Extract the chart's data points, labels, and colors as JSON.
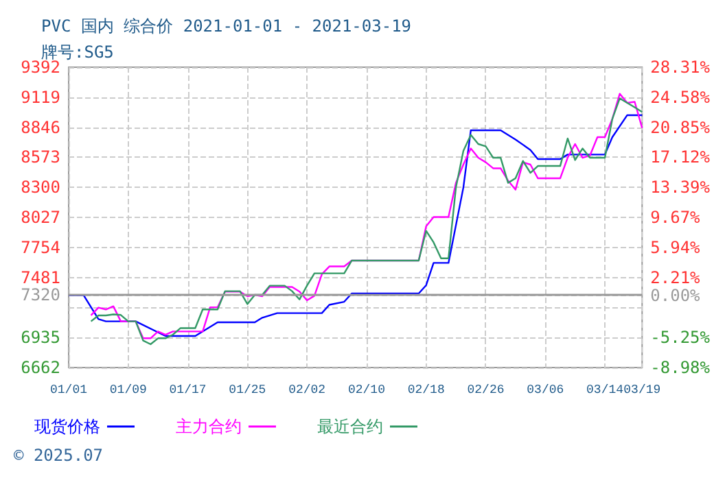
{
  "chart_data": {
    "type": "line",
    "title": "PVC 国内 综合价 2021-01-01 - 2021-03-19",
    "subtitle": "牌号:SG5",
    "annotations": [
      "© 2025.07"
    ],
    "legend": "bottom",
    "grid": true,
    "marker": "none",
    "line_style": "solid",
    "xlim": [
      "2021-01-01",
      "2021-03-19"
    ],
    "xticks": [
      {
        "value": "2021-01-01",
        "label": "01/01"
      },
      {
        "value": "2021-01-09",
        "label": "01/09"
      },
      {
        "value": "2021-01-17",
        "label": "01/17"
      },
      {
        "value": "2021-01-25",
        "label": "01/25"
      },
      {
        "value": "2021-02-02",
        "label": "02/02"
      },
      {
        "value": "2021-02-10",
        "label": "02/10"
      },
      {
        "value": "2021-02-18",
        "label": "02/18"
      },
      {
        "value": "2021-02-26",
        "label": "02/26"
      },
      {
        "value": "2021-03-06",
        "label": "03/06"
      },
      {
        "value": "2021-03-14",
        "label": "03/14"
      },
      {
        "value": "2021-03-19",
        "label": "03/19"
      }
    ],
    "ylim": [
      6662,
      9392
    ],
    "yticks": [
      6662,
      6935,
      {
        "value": 7208,
        "label": null
      },
      7320,
      7481,
      7754,
      8027,
      8300,
      8573,
      8846,
      9119,
      9392
    ],
    "y2lim": [
      -8.98,
      28.31
    ],
    "y2ticks": [
      {
        "value": -8.98,
        "label": "-8.98%"
      },
      {
        "value": -5.25,
        "label": "-5.25%"
      },
      {
        "value": 0,
        "label": "0.00%"
      },
      {
        "value": 2.21,
        "label": "2.21%"
      },
      {
        "value": 5.94,
        "label": "5.94%"
      },
      {
        "value": 9.67,
        "label": "9.67%"
      },
      {
        "value": 13.39,
        "label": "13.39%"
      },
      {
        "value": 17.12,
        "label": "17.12%"
      },
      {
        "value": 20.85,
        "label": "20.85%"
      },
      {
        "value": 24.58,
        "label": "24.58%"
      },
      {
        "value": 28.31,
        "label": "28.31%"
      }
    ],
    "ref_lines": [
      {
        "axis": "y",
        "value": 7320,
        "label": null,
        "color": "#999999",
        "line_style": "solid"
      }
    ],
    "series": [
      {
        "name": "现货价格",
        "color": "#0000ff",
        "x": [
          "2021-01-01",
          "2021-01-03",
          "2021-01-05",
          "2021-01-06",
          "2021-01-10",
          "2021-01-14",
          "2021-01-18",
          "2021-01-21",
          "2021-01-26",
          "2021-01-27",
          "2021-01-29",
          "2021-02-04",
          "2021-02-05",
          "2021-02-07",
          "2021-02-08",
          "2021-02-17",
          "2021-02-18",
          "2021-02-19",
          "2021-02-21",
          "2021-02-23",
          "2021-02-24",
          "2021-02-28",
          "2021-03-02",
          "2021-03-04",
          "2021-03-05",
          "2021-03-08",
          "2021-03-09",
          "2021-03-14",
          "2021-03-15",
          "2021-03-17",
          "2021-03-19"
        ],
        "values": [
          7320,
          7320,
          7102,
          7082,
          7082,
          6949,
          6949,
          7073,
          7073,
          7115,
          7157,
          7157,
          7232,
          7260,
          7335,
          7335,
          7410,
          7613,
          7613,
          8299,
          8819,
          8819,
          8735,
          8640,
          8557,
          8557,
          8598,
          8598,
          8756,
          8956,
          8956
        ]
      },
      {
        "name": "主力合约",
        "color": "#ff00ff",
        "x": [
          "2021-01-04",
          "2021-01-05",
          "2021-01-06",
          "2021-01-07",
          "2021-01-08",
          "2021-01-10",
          "2021-01-11",
          "2021-01-12",
          "2021-01-13",
          "2021-01-14",
          "2021-01-15",
          "2021-01-19",
          "2021-01-20",
          "2021-01-21",
          "2021-01-22",
          "2021-01-24",
          "2021-01-25",
          "2021-01-26",
          "2021-01-27",
          "2021-01-28",
          "2021-01-31",
          "2021-02-01",
          "2021-02-02",
          "2021-02-03",
          "2021-02-04",
          "2021-02-05",
          "2021-02-07",
          "2021-02-08",
          "2021-02-17",
          "2021-02-18",
          "2021-02-19",
          "2021-02-21",
          "2021-02-22",
          "2021-02-23",
          "2021-02-24",
          "2021-02-25",
          "2021-02-26",
          "2021-02-27",
          "2021-02-28",
          "2021-03-01",
          "2021-03-02",
          "2021-03-03",
          "2021-03-04",
          "2021-03-05",
          "2021-03-08",
          "2021-03-09",
          "2021-03-10",
          "2021-03-11",
          "2021-03-12",
          "2021-03-13",
          "2021-03-14",
          "2021-03-15",
          "2021-03-16",
          "2021-03-17",
          "2021-03-18",
          "2021-03-19"
        ],
        "values": [
          7136,
          7207,
          7190,
          7219,
          7082,
          7082,
          6928,
          6928,
          6990,
          6961,
          6990,
          6990,
          7210,
          7210,
          7352,
          7352,
          7310,
          7323,
          7310,
          7394,
          7394,
          7352,
          7273,
          7314,
          7510,
          7581,
          7581,
          7634,
          7634,
          7946,
          8030,
          8030,
          8341,
          8507,
          8653,
          8569,
          8528,
          8473,
          8473,
          8361,
          8279,
          8528,
          8507,
          8382,
          8382,
          8569,
          8694,
          8569,
          8590,
          8756,
          8756,
          8922,
          9151,
          9068,
          9077,
          8840
        ]
      },
      {
        "name": "最近合约",
        "color": "#339966",
        "x": [
          "2021-01-04",
          "2021-01-05",
          "2021-01-06",
          "2021-01-07",
          "2021-01-08",
          "2021-01-09",
          "2021-01-10",
          "2021-01-11",
          "2021-01-12",
          "2021-01-13",
          "2021-01-14",
          "2021-01-15",
          "2021-01-16",
          "2021-01-18",
          "2021-01-19",
          "2021-01-21",
          "2021-01-22",
          "2021-01-24",
          "2021-01-25",
          "2021-01-26",
          "2021-01-27",
          "2021-01-28",
          "2021-01-30",
          "2021-01-31",
          "2021-02-01",
          "2021-02-02",
          "2021-02-03",
          "2021-02-07",
          "2021-02-08",
          "2021-02-17",
          "2021-02-18",
          "2021-02-19",
          "2021-02-20",
          "2021-02-21",
          "2021-02-22",
          "2021-02-23",
          "2021-02-24",
          "2021-02-25",
          "2021-02-26",
          "2021-02-27",
          "2021-02-28",
          "2021-03-01",
          "2021-03-02",
          "2021-03-03",
          "2021-03-04",
          "2021-03-05",
          "2021-03-08",
          "2021-03-09",
          "2021-03-10",
          "2021-03-11",
          "2021-03-12",
          "2021-03-14",
          "2021-03-15",
          "2021-03-16",
          "2021-03-17",
          "2021-03-18",
          "2021-03-19"
        ],
        "values": [
          7082,
          7136,
          7136,
          7145,
          7140,
          7082,
          7082,
          6907,
          6874,
          6928,
          6928,
          6961,
          7020,
          7020,
          7190,
          7190,
          7356,
          7356,
          7239,
          7323,
          7323,
          7406,
          7406,
          7356,
          7281,
          7406,
          7518,
          7518,
          7634,
          7634,
          7905,
          7800,
          7655,
          7655,
          8299,
          8632,
          8777,
          8694,
          8673,
          8569,
          8569,
          8341,
          8382,
          8540,
          8432,
          8494,
          8494,
          8744,
          8548,
          8653,
          8569,
          8569,
          8922,
          9109,
          9068,
          9027,
          8985
        ]
      }
    ]
  }
}
